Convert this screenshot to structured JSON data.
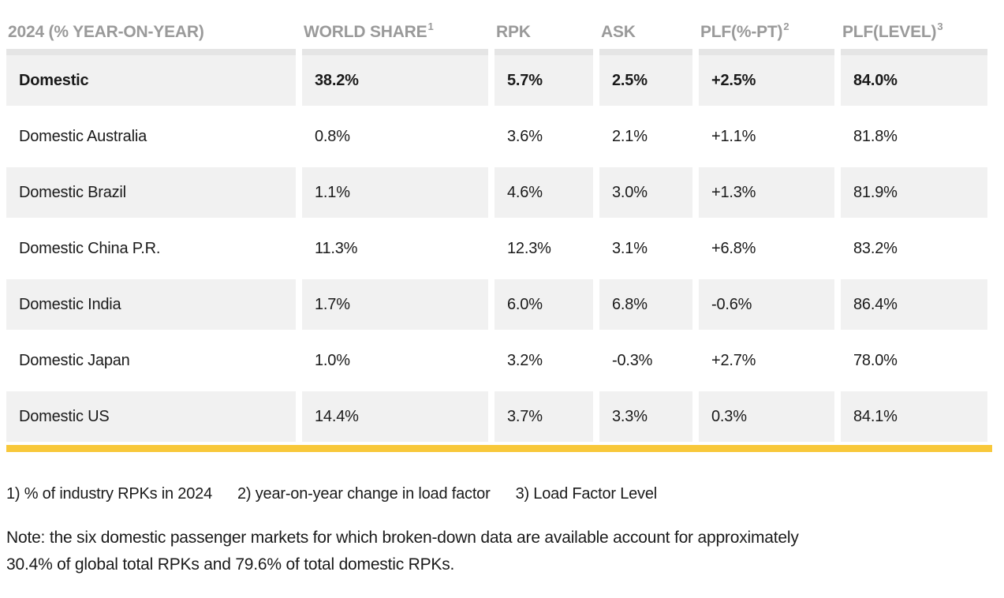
{
  "table": {
    "header": {
      "row_header": "2024 (% YEAR-ON-YEAR)",
      "columns": [
        {
          "label": "WORLD SHARE",
          "sup": "1"
        },
        {
          "label": "RPK",
          "sup": ""
        },
        {
          "label": "ASK",
          "sup": ""
        },
        {
          "label": "PLF(%-PT)",
          "sup": "2"
        },
        {
          "label": "PLF(LEVEL)",
          "sup": "3"
        }
      ]
    },
    "rows": [
      {
        "label": "Domestic",
        "world_share": "38.2%",
        "rpk": "5.7%",
        "ask": "2.5%",
        "plf_pt": "+2.5%",
        "plf_level": "84.0%",
        "bold": true
      },
      {
        "label": "Domestic Australia",
        "world_share": "0.8%",
        "rpk": "3.6%",
        "ask": "2.1%",
        "plf_pt": "+1.1%",
        "plf_level": "81.8%",
        "bold": false
      },
      {
        "label": "Domestic Brazil",
        "world_share": "1.1%",
        "rpk": "4.6%",
        "ask": "3.0%",
        "plf_pt": "+1.3%",
        "plf_level": "81.9%",
        "bold": false
      },
      {
        "label": "Domestic China P.R.",
        "world_share": "11.3%",
        "rpk": "12.3%",
        "ask": "3.1%",
        "plf_pt": "+6.8%",
        "plf_level": "83.2%",
        "bold": false
      },
      {
        "label": "Domestic India",
        "world_share": "1.7%",
        "rpk": "6.0%",
        "ask": "6.8%",
        "plf_pt": "-0.6%",
        "plf_level": "86.4%",
        "bold": false
      },
      {
        "label": "Domestic Japan",
        "world_share": "1.0%",
        "rpk": "3.2%",
        "ask": "-0.3%",
        "plf_pt": "+2.7%",
        "plf_level": "78.0%",
        "bold": false
      },
      {
        "label": "Domestic US",
        "world_share": "14.4%",
        "rpk": "3.7%",
        "ask": "3.3%",
        "plf_pt": "0.3%",
        "plf_level": "84.1%",
        "bold": false
      }
    ]
  },
  "footnotes": [
    "1) % of industry RPKs in 2024",
    "2) year-on-year change in load factor",
    "3) Load Factor Level"
  ],
  "note_lines": [
    "Note: the six domestic passenger markets for which broken-down data are available account for approximately",
    "30.4% of global total RPKs and 79.6% of total domestic RPKs."
  ],
  "colors": {
    "accent_bar": "#F8C83A",
    "row_alt_background": "#F1F1F1",
    "header_text": "#9A9A9A",
    "body_text": "#1A1A1A",
    "header_strip": "#E5E5E5"
  }
}
